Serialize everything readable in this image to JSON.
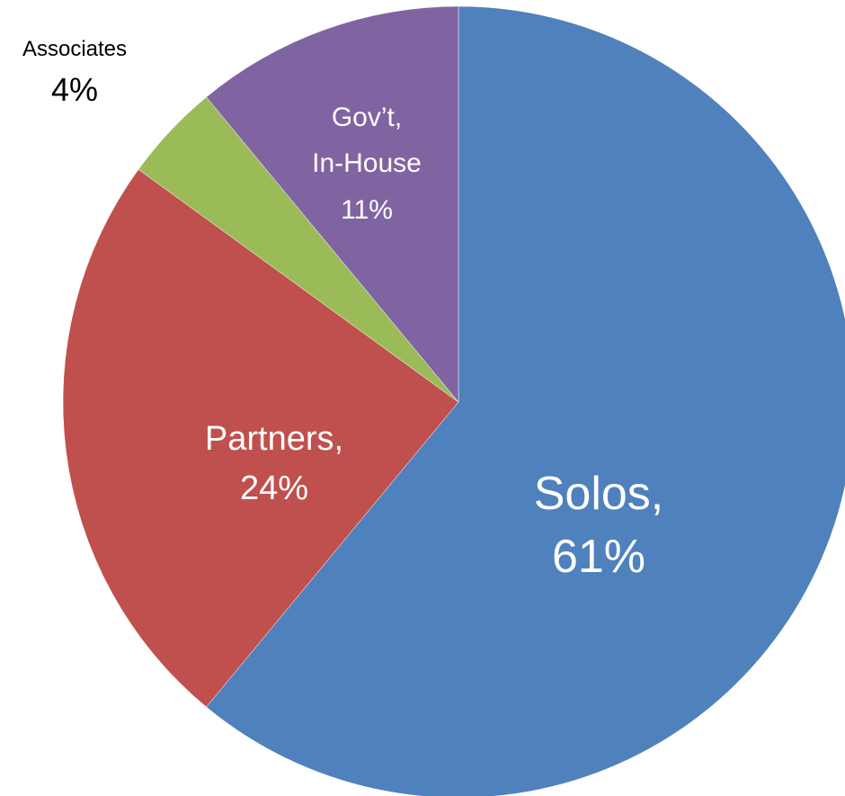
{
  "chart_data": {
    "type": "pie",
    "title": "",
    "slices": [
      {
        "label": "Solos",
        "value": 61,
        "value_text": "61%",
        "color": "#4F81BD",
        "label_style": "inside"
      },
      {
        "label": "Partners",
        "value": 24,
        "value_text": "24%",
        "color": "#C0504D",
        "label_style": "inside"
      },
      {
        "label": "Associates",
        "value": 4,
        "value_text": "4%",
        "color": "#9BBB59",
        "label_style": "outside"
      },
      {
        "label": "Gov’t, In-House",
        "value": 11,
        "value_text": "11%",
        "color": "#8064A2",
        "label_style": "inside"
      }
    ],
    "start": "12 o'clock",
    "direction": "clockwise",
    "legend": "none"
  }
}
